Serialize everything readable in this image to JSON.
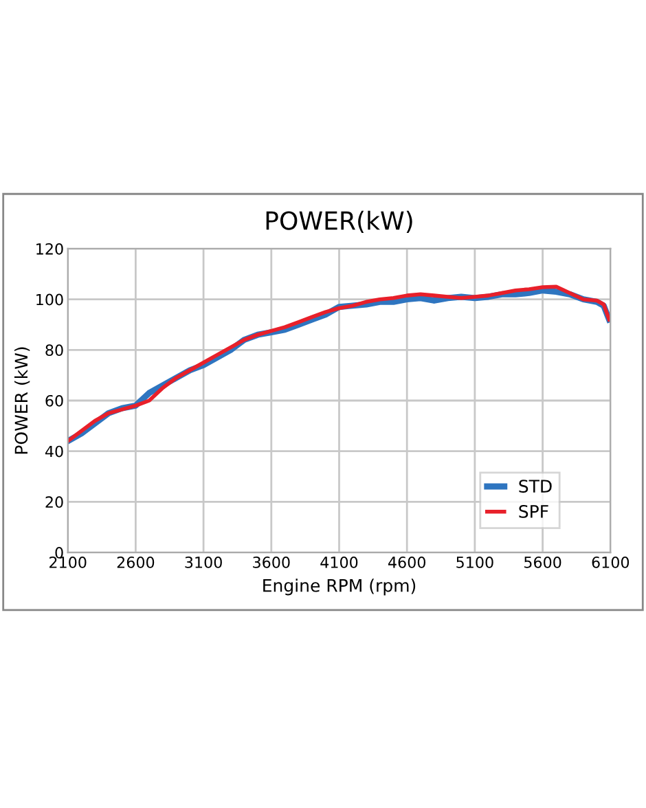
{
  "chart_data": {
    "type": "line",
    "title": "POWER(kW)",
    "xlabel": "Engine RPM (rpm)",
    "ylabel": "POWER (kW)",
    "x": [
      2100,
      2200,
      2300,
      2400,
      2500,
      2600,
      2700,
      2800,
      2900,
      3000,
      3100,
      3200,
      3300,
      3400,
      3500,
      3600,
      3700,
      3800,
      3900,
      4000,
      4100,
      4200,
      4300,
      4400,
      4500,
      4600,
      4700,
      4800,
      4900,
      5000,
      5100,
      5200,
      5300,
      5400,
      5500,
      5600,
      5700,
      5800,
      5900,
      6000,
      6050,
      6090
    ],
    "series": [
      {
        "name": "STD",
        "color": "#2e75c0",
        "values": [
          44,
          47,
          51,
          55,
          57,
          58,
          63,
          66,
          69,
          72,
          74,
          77,
          80,
          84,
          86,
          87,
          88,
          90,
          92,
          94,
          97,
          97.5,
          98,
          99,
          99,
          100,
          100.5,
          99.5,
          100.5,
          101,
          100.5,
          101,
          102,
          102,
          102.5,
          103.5,
          103,
          102,
          100,
          99,
          97.5,
          92
        ]
      },
      {
        "name": "SPF",
        "color": "#e8202a",
        "values": [
          44,
          48,
          52,
          55,
          56.5,
          58,
          60,
          65,
          69,
          72,
          75,
          78,
          81,
          84,
          86,
          87.5,
          89,
          91,
          93,
          95,
          96.5,
          97.5,
          99,
          100,
          100.5,
          101.5,
          102,
          101.5,
          101,
          100.5,
          101,
          101.5,
          102.5,
          103.5,
          104,
          104.8,
          105,
          102.5,
          100,
          99.5,
          98,
          92
        ]
      }
    ],
    "xlim": [
      2100,
      6100
    ],
    "xticks": [
      2100,
      2600,
      3100,
      3600,
      4100,
      4600,
      5100,
      5600,
      6100
    ],
    "ylim": [
      0,
      120
    ],
    "yticks": [
      0,
      20,
      40,
      60,
      80,
      100,
      120
    ],
    "grid": true,
    "legend": "bottom right",
    "marker": "none",
    "line_style": "solid"
  }
}
